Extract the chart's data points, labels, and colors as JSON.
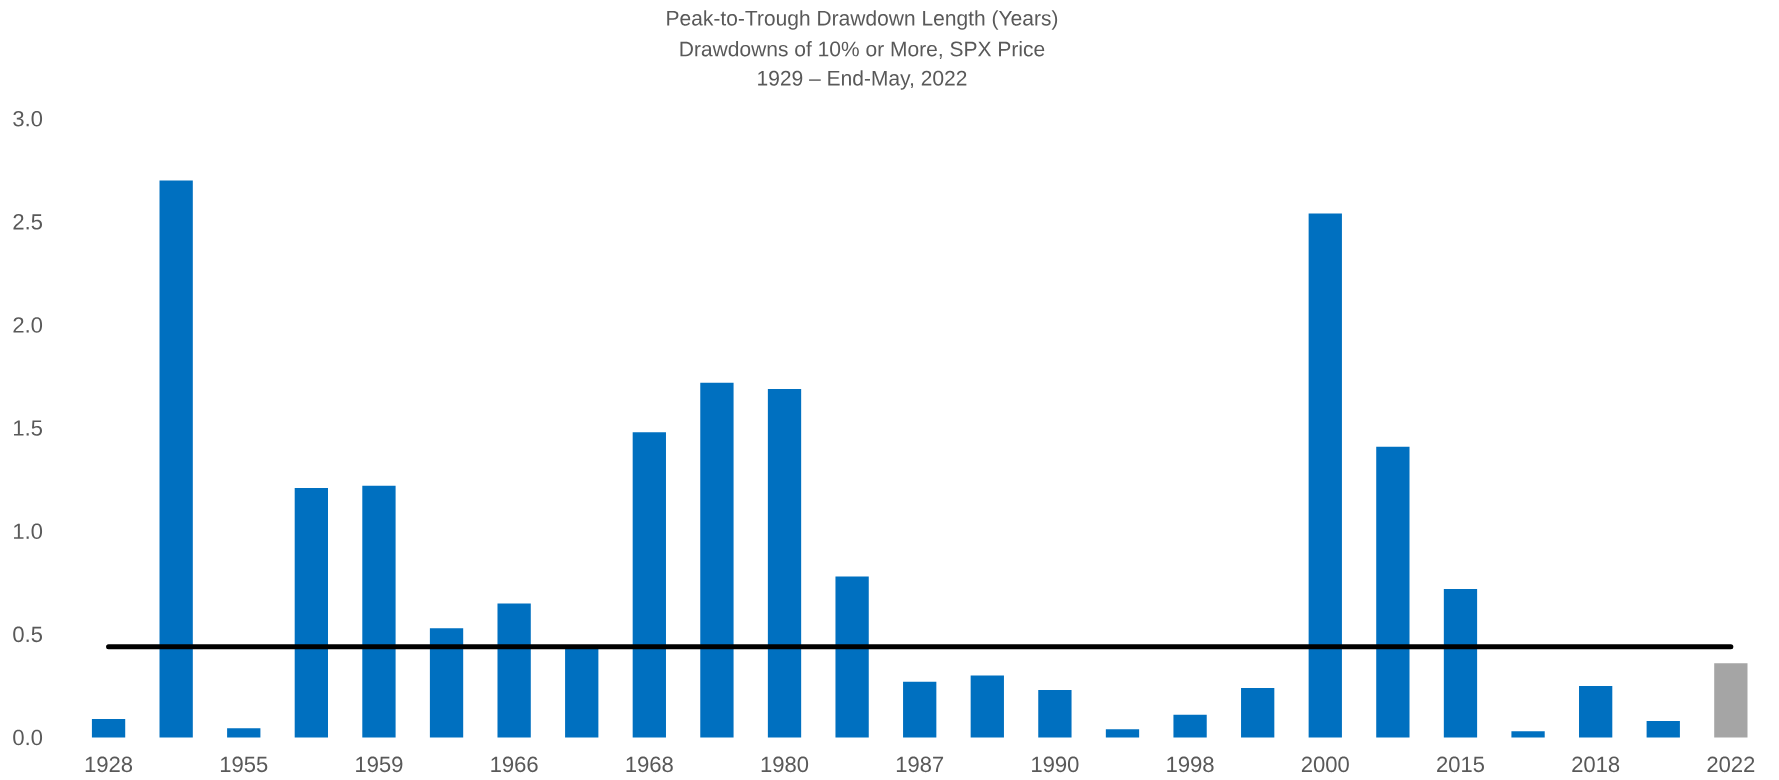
{
  "chart_data": {
    "type": "bar",
    "title": "Peak-to-Trough Drawdown Length (Years)",
    "subtitle": "Drawdowns of 10% or More, SPX Price",
    "annotations": [
      "1929 – End-May, 2022"
    ],
    "categories": [
      "1928",
      null,
      "1955",
      null,
      "1959",
      null,
      "1966",
      null,
      "1968",
      null,
      "1980",
      null,
      "1987",
      null,
      "1990",
      null,
      "1998",
      null,
      "2000",
      null,
      "2015",
      null,
      "2018",
      null,
      "2022"
    ],
    "values": [
      0.09,
      2.7,
      0.045,
      1.21,
      1.22,
      0.53,
      0.65,
      0.43,
      1.48,
      1.72,
      1.69,
      0.78,
      0.27,
      0.3,
      0.23,
      0.04,
      0.11,
      0.24,
      2.54,
      1.41,
      0.72,
      0.03,
      0.25,
      0.08,
      0.36
    ],
    "colors": [
      "#0070c0",
      "#0070c0",
      "#0070c0",
      "#0070c0",
      "#0070c0",
      "#0070c0",
      "#0070c0",
      "#0070c0",
      "#0070c0",
      "#0070c0",
      "#0070c0",
      "#0070c0",
      "#0070c0",
      "#0070c0",
      "#0070c0",
      "#0070c0",
      "#0070c0",
      "#0070c0",
      "#0070c0",
      "#0070c0",
      "#0070c0",
      "#0070c0",
      "#0070c0",
      "#0070c0",
      "#a5a5a5"
    ],
    "ylim": [
      0,
      3
    ],
    "yticks": [
      {
        "value": 0,
        "label": "0.0"
      },
      {
        "value": 0.5,
        "label": "0.5"
      },
      {
        "value": 1,
        "label": "1.0"
      },
      {
        "value": 1.5,
        "label": "1.5"
      },
      {
        "value": 2,
        "label": "2.0"
      },
      {
        "value": 2.5,
        "label": "2.5"
      },
      {
        "value": 3,
        "label": "3.0"
      }
    ],
    "ref_lines": [
      {
        "axis": "y",
        "value": 0.44,
        "color": "#000000"
      }
    ],
    "grid": false
  }
}
